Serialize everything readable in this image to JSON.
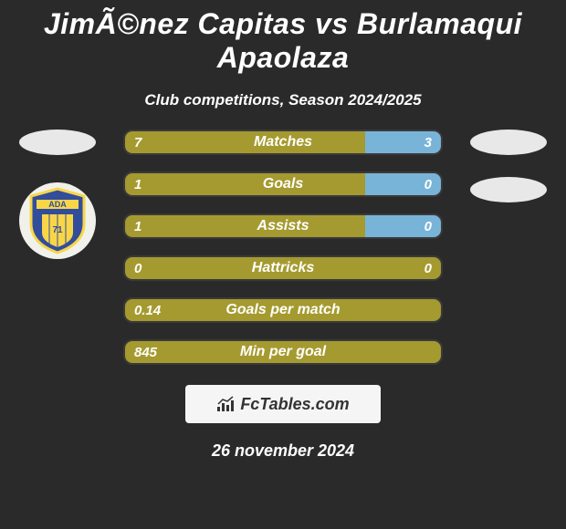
{
  "title": "JimÃ©nez Capitas vs Burlamaqui Apaolaza",
  "subtitle": "Club competitions, Season 2024/2025",
  "date": "26 november 2024",
  "fctables_label": "FcTables.com",
  "colors": {
    "olive": "#a59a2f",
    "lightblue": "#78b4d8",
    "bg": "#2a2a2a",
    "oval": "#e8e8e8",
    "box": "#f5f5f5",
    "text_dark": "#333333"
  },
  "club_left": {
    "shield_fill": "#324d9b",
    "stripe": "#f8d648",
    "circle": "#f1f1ec"
  },
  "stats": [
    {
      "label": "Matches",
      "left_val": "7",
      "right_val": "3",
      "left_pct": 76,
      "right_color": "#78b4d8"
    },
    {
      "label": "Goals",
      "left_val": "1",
      "right_val": "0",
      "left_pct": 76,
      "right_color": "#78b4d8"
    },
    {
      "label": "Assists",
      "left_val": "1",
      "right_val": "0",
      "left_pct": 76,
      "right_color": "#78b4d8"
    },
    {
      "label": "Hattricks",
      "left_val": "0",
      "right_val": "0",
      "left_pct": 50,
      "right_color": "#a59a2f"
    },
    {
      "label": "Goals per match",
      "left_val": "0.14",
      "right_val": "",
      "left_pct": 100,
      "right_color": "#a59a2f"
    },
    {
      "label": "Min per goal",
      "left_val": "845",
      "right_val": "",
      "left_pct": 100,
      "right_color": "#a59a2f"
    }
  ]
}
